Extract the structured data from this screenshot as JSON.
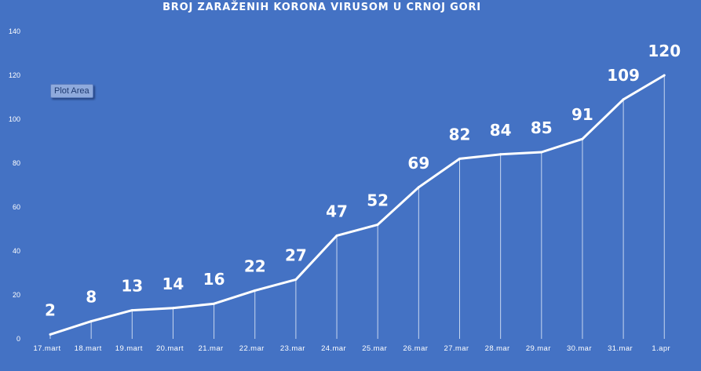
{
  "chart_data": {
    "type": "line",
    "title": "BROJ ZARAŽENIH KORONA VIRUSOM U CRNOJ GORI",
    "categories": [
      "17.mart",
      "18.mart",
      "19.mart",
      "20.mart",
      "21.mar",
      "22.mar",
      "23.mar",
      "24.mar",
      "25.mar",
      "26.mar",
      "27.mar",
      "28.mar",
      "29.mar",
      "30.mar",
      "31.mar",
      "1.apr"
    ],
    "values": [
      2,
      8,
      13,
      14,
      16,
      22,
      27,
      47,
      52,
      69,
      82,
      84,
      85,
      91,
      109,
      120
    ],
    "ylim": [
      0,
      140
    ],
    "yticks": [
      0,
      20,
      40,
      60,
      80,
      100,
      120,
      140
    ],
    "data_labels": true,
    "drop_lines": true,
    "grid": false,
    "colors": {
      "background": "#4472C4",
      "line": "#FFFFFF",
      "text": "#FFFFFF"
    }
  },
  "tooltip": {
    "label": "Plot Area"
  }
}
